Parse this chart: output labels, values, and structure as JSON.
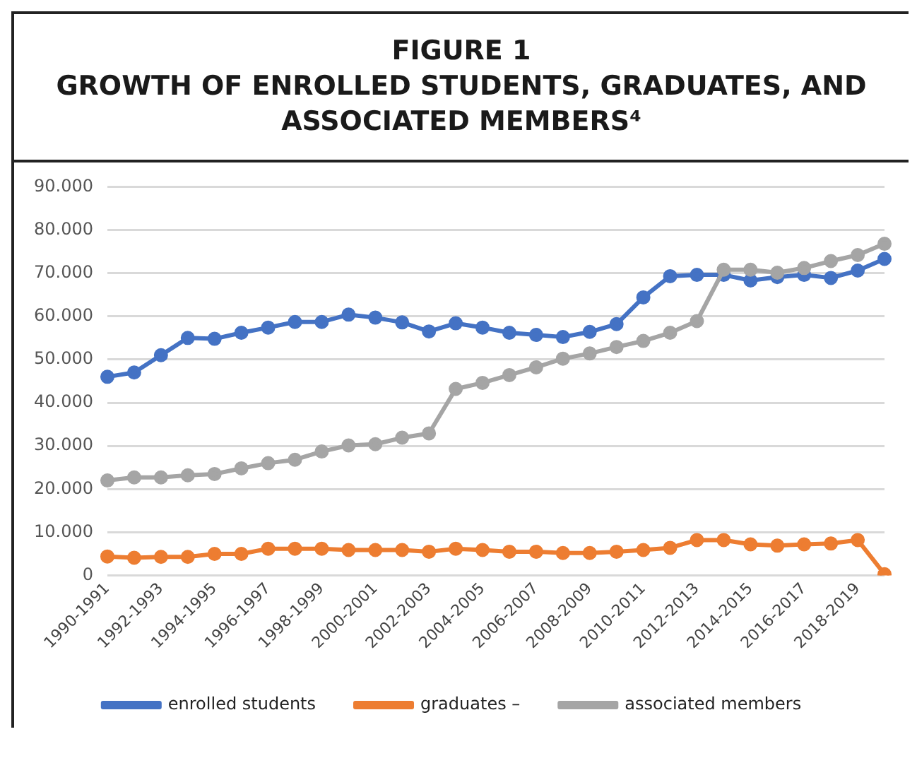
{
  "chart_data": {
    "type": "line",
    "title": "FIGURE 1\nGROWTH OF ENROLLED STUDENTS, GRADUATES, AND ASSOCIATED MEMBERS⁴",
    "categories": [
      "1990-1991",
      null,
      "1992-1993",
      null,
      "1994-1995",
      null,
      "1996-1997",
      null,
      "1998-1999",
      null,
      "2000-2001",
      null,
      "2002-2003",
      null,
      "2004-2005",
      null,
      "2006-2007",
      null,
      "2008-2009",
      null,
      "2010-2011",
      null,
      "2012-2013",
      null,
      "2014-2015",
      null,
      "2016-2017",
      null,
      "2018-2019",
      null
    ],
    "series": [
      {
        "name": "enrolled students",
        "color": "#4472c4",
        "values": [
          46000,
          47000,
          51000,
          55000,
          54800,
          56200,
          57400,
          58700,
          58700,
          60400,
          59700,
          58600,
          56500,
          58400,
          57400,
          56200,
          55700,
          55200,
          56400,
          58200,
          64400,
          69300,
          69600,
          69600,
          68300,
          69100,
          69600,
          68900,
          70600,
          73300
        ]
      },
      {
        "name": "graduates –",
        "color": "#ed7d31",
        "values": [
          4400,
          4100,
          4300,
          4300,
          5000,
          5000,
          6200,
          6200,
          6200,
          5900,
          5900,
          5900,
          5500,
          6200,
          5900,
          5500,
          5500,
          5200,
          5200,
          5500,
          5900,
          6400,
          8200,
          8200,
          7200,
          6900,
          7200,
          7400,
          8200,
          300
        ]
      },
      {
        "name": "associated members",
        "color": "#a5a5a5",
        "values": [
          22000,
          22700,
          22700,
          23200,
          23500,
          24800,
          26000,
          26800,
          28700,
          30100,
          30400,
          31900,
          32900,
          43200,
          44600,
          46400,
          48200,
          50200,
          51400,
          52900,
          54300,
          56200,
          58900,
          70800,
          70800,
          70100,
          71200,
          72800,
          74200,
          76800
        ]
      }
    ],
    "ylim": [
      0,
      90000
    ],
    "yticks": [
      0,
      {
        "value": 10000,
        "label": "10.000"
      },
      {
        "value": 20000,
        "label": "20.000"
      },
      {
        "value": 30000,
        "label": "30.000"
      },
      {
        "value": 40000,
        "label": "40.000"
      },
      {
        "value": 50000,
        "label": "50.000"
      },
      {
        "value": 60000,
        "label": "60.000"
      },
      {
        "value": 70000,
        "label": "70.000"
      },
      {
        "value": 80000,
        "label": "80.000"
      },
      {
        "value": 90000,
        "label": "90.000"
      }
    ],
    "grid": "y",
    "legend": "bottom",
    "marker": "circle",
    "line_style": "solid"
  }
}
